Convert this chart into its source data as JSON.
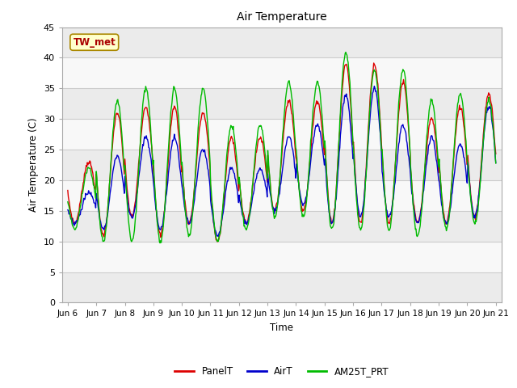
{
  "title": "Air Temperature",
  "ylabel": "Air Temperature (C)",
  "xlabel": "Time",
  "annotation_text": "TW_met",
  "annotation_box_color": "#FFFFCC",
  "annotation_text_color": "#AA0000",
  "ylim": [
    0,
    45
  ],
  "yticks": [
    0,
    5,
    10,
    15,
    20,
    25,
    30,
    35,
    40,
    45
  ],
  "fig_bg_color": "#FFFFFF",
  "plot_bg_color": "#FFFFFF",
  "band_colors": [
    "#EBEBEB",
    "#F8F8F8"
  ],
  "grid_color": "#CCCCCC",
  "series_colors": {
    "PanelT": "#DD0000",
    "AirT": "#0000CC",
    "AM25T_PRT": "#00BB00"
  },
  "x_tick_labels": [
    "Jun 6",
    "Jun 7",
    "Jun 8",
    "Jun 9",
    "Jun 10",
    "Jun 11",
    "Jun 12",
    "Jun 13",
    "Jun 14",
    "Jun 15",
    "Jun 16",
    "Jun 17",
    "Jun 18",
    "Jun 19",
    "Jun 20",
    "Jun 21"
  ],
  "panel_mins": [
    13,
    11,
    14,
    11,
    13,
    10,
    13,
    15,
    15,
    13,
    13,
    13,
    13,
    13,
    14
  ],
  "panel_maxs": [
    23,
    31,
    32,
    32,
    31,
    27,
    27,
    33,
    33,
    39,
    39,
    36,
    30,
    32,
    34
  ],
  "air_mins": [
    13,
    12,
    14,
    12,
    13,
    11,
    13,
    15,
    16,
    13,
    14,
    14,
    13,
    13,
    14
  ],
  "air_maxs": [
    18,
    24,
    27,
    27,
    25,
    22,
    22,
    27,
    29,
    34,
    35,
    29,
    27,
    26,
    32
  ],
  "am25_mins": [
    12,
    10,
    10,
    10,
    11,
    10,
    12,
    14,
    14,
    12,
    12,
    12,
    11,
    12,
    13
  ],
  "am25_maxs": [
    22,
    33,
    35,
    35,
    35,
    29,
    29,
    36,
    36,
    41,
    38,
    38,
    33,
    34,
    33
  ],
  "n_days": 15,
  "pts_per_day": 48
}
